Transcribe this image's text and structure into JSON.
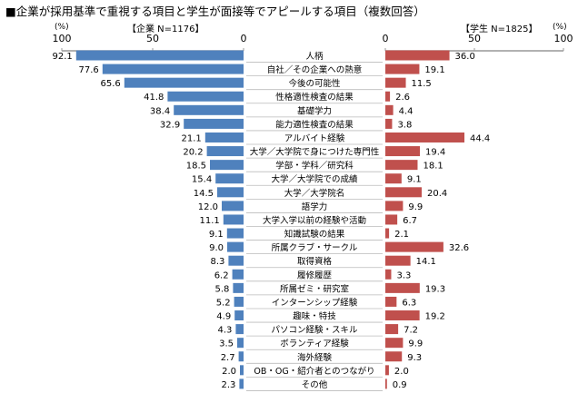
{
  "title": "■企業が採用基準で重視する項目と学生が面接等でアピールする項目（複数回答）",
  "chart_data": {
    "type": "bar",
    "title": "■企業が採用基準で重視する項目と学生が面接等でアピールする項目（複数回答）",
    "unit": "(%)",
    "left_axis": {
      "label": "【企業 N=1176】",
      "ticks": [
        100,
        50,
        0
      ],
      "range": [
        0,
        100
      ],
      "direction": "reversed"
    },
    "right_axis": {
      "label": "【学生 N=1825】",
      "ticks": [
        0,
        50,
        100
      ],
      "range": [
        0,
        100
      ]
    },
    "colors": {
      "company": "#4f81bd",
      "student": "#c0504d"
    },
    "categories": [
      "人柄",
      "自社／その企業への熱意",
      "今後の可能性",
      "性格適性検査の結果",
      "基礎学力",
      "能力適性検査の結果",
      "アルバイト経験",
      "大学／大学院で身につけた専門性",
      "学部・学科／研究科",
      "大学／大学院での成績",
      "大学／大学院名",
      "語学力",
      "大学入学以前の経験や活動",
      "知識試験の結果",
      "所属クラブ・サークル",
      "取得資格",
      "履修履歴",
      "所属ゼミ・研究室",
      "インターンシップ経験",
      "趣味・特技",
      "パソコン経験・スキル",
      "ボランティア経験",
      "海外経験",
      "OB・OG・紹介者とのつながり",
      "その他"
    ],
    "series": [
      {
        "name": "企業 N=1176",
        "values": [
          92.1,
          77.6,
          65.6,
          41.8,
          38.4,
          32.9,
          21.1,
          20.2,
          18.5,
          15.4,
          14.5,
          12.0,
          11.1,
          9.1,
          9.0,
          8.3,
          6.2,
          5.8,
          5.2,
          4.9,
          4.3,
          3.5,
          2.7,
          2.0,
          2.3
        ]
      },
      {
        "name": "学生 N=1825",
        "values": [
          36.0,
          19.1,
          11.5,
          2.6,
          4.4,
          3.8,
          44.4,
          19.4,
          18.1,
          9.1,
          20.4,
          9.9,
          6.7,
          2.1,
          32.6,
          14.1,
          3.3,
          19.3,
          6.3,
          19.2,
          7.2,
          9.9,
          9.3,
          2.0,
          0.9
        ]
      }
    ]
  }
}
